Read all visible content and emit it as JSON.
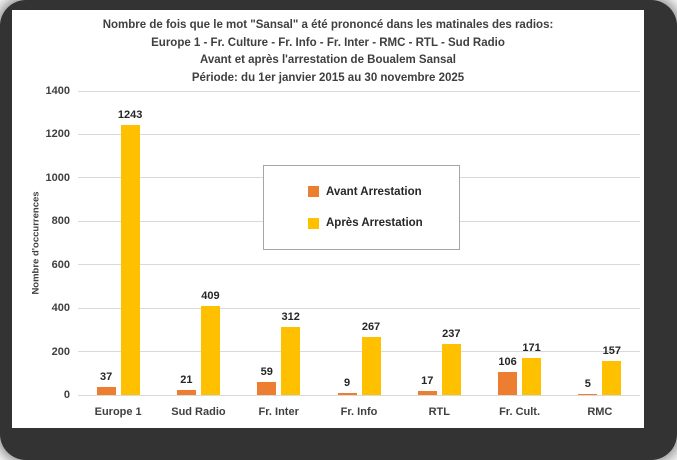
{
  "window": {
    "frame_color": "#333333",
    "panel_color": "#ffffff"
  },
  "chart_data": {
    "type": "bar",
    "title_lines": [
      "Nombre de fois que le mot \"Sansal\" a été prononcé dans les matinales des radios:",
      "Europe 1 - Fr. Culture - Fr. Info - Fr. Inter - RMC - RTL - Sud Radio",
      "Avant et après l'arrestation de Boualem Sansal",
      "Période: du 1er janvier 2015 au 30 novembre 2025"
    ],
    "xlabel": "",
    "ylabel": "Nombre d'occurrences",
    "ylim": [
      0,
      1400
    ],
    "ytick_step": 200,
    "yticks": [
      0,
      200,
      400,
      600,
      800,
      1000,
      1200,
      1400
    ],
    "grid": true,
    "data_labels": true,
    "legend_position": "center-overlay",
    "gridline_color": "#d9d9d9",
    "categories": [
      "Europe 1",
      "Sud Radio",
      "Fr. Inter",
      "Fr. Info",
      "RTL",
      "Fr. Cult.",
      "RMC"
    ],
    "series": [
      {
        "name": "Avant Arrestation",
        "color": "#ED7D31",
        "values": [
          37,
          21,
          59,
          9,
          17,
          106,
          5
        ]
      },
      {
        "name": "Après Arrestation",
        "color": "#FFC000",
        "values": [
          1243,
          409,
          312,
          267,
          237,
          171,
          157
        ]
      }
    ]
  }
}
